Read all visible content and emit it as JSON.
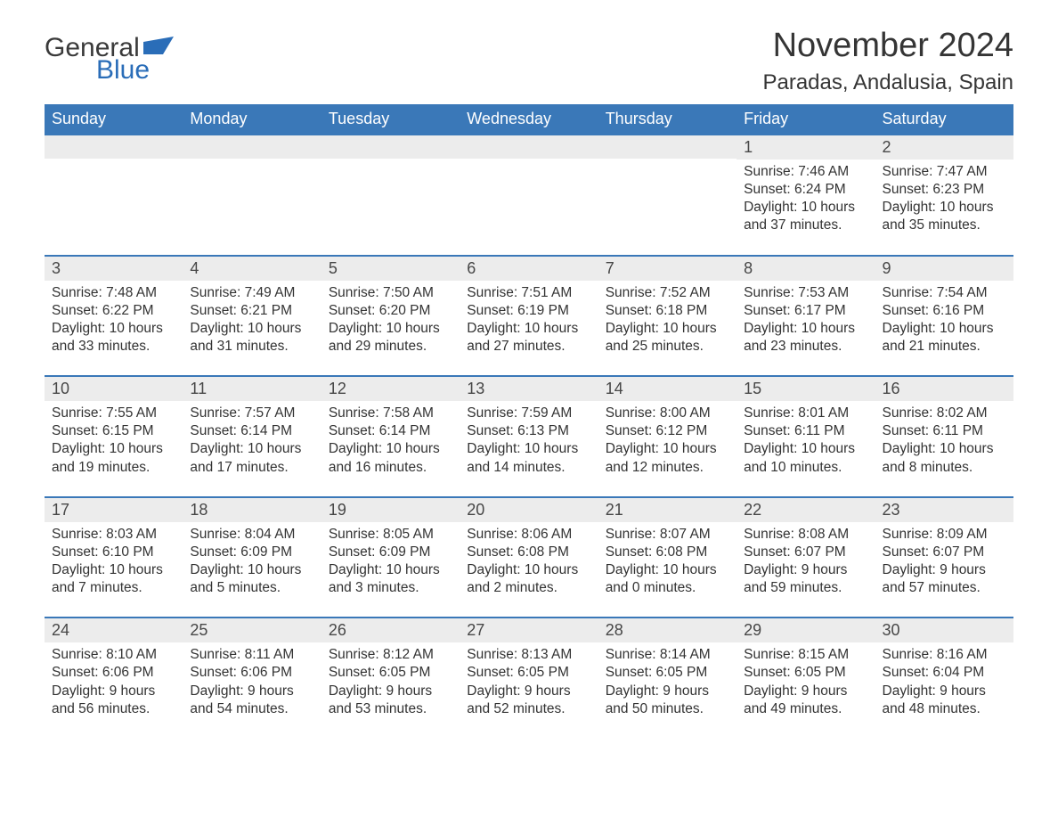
{
  "logo": {
    "text1": "General",
    "text2": "Blue",
    "flag_color": "#2a6db8"
  },
  "title": "November 2024",
  "location": "Paradas, Andalusia, Spain",
  "header_bg": "#3a78b8",
  "day_header_bg": "#ececec",
  "text_color": "#333333",
  "week_days": [
    "Sunday",
    "Monday",
    "Tuesday",
    "Wednesday",
    "Thursday",
    "Friday",
    "Saturday"
  ],
  "weeks": [
    [
      {},
      {},
      {},
      {},
      {},
      {
        "num": "1",
        "sunrise": "Sunrise: 7:46 AM",
        "sunset": "Sunset: 6:24 PM",
        "daylight": "Daylight: 10 hours and 37 minutes."
      },
      {
        "num": "2",
        "sunrise": "Sunrise: 7:47 AM",
        "sunset": "Sunset: 6:23 PM",
        "daylight": "Daylight: 10 hours and 35 minutes."
      }
    ],
    [
      {
        "num": "3",
        "sunrise": "Sunrise: 7:48 AM",
        "sunset": "Sunset: 6:22 PM",
        "daylight": "Daylight: 10 hours and 33 minutes."
      },
      {
        "num": "4",
        "sunrise": "Sunrise: 7:49 AM",
        "sunset": "Sunset: 6:21 PM",
        "daylight": "Daylight: 10 hours and 31 minutes."
      },
      {
        "num": "5",
        "sunrise": "Sunrise: 7:50 AM",
        "sunset": "Sunset: 6:20 PM",
        "daylight": "Daylight: 10 hours and 29 minutes."
      },
      {
        "num": "6",
        "sunrise": "Sunrise: 7:51 AM",
        "sunset": "Sunset: 6:19 PM",
        "daylight": "Daylight: 10 hours and 27 minutes."
      },
      {
        "num": "7",
        "sunrise": "Sunrise: 7:52 AM",
        "sunset": "Sunset: 6:18 PM",
        "daylight": "Daylight: 10 hours and 25 minutes."
      },
      {
        "num": "8",
        "sunrise": "Sunrise: 7:53 AM",
        "sunset": "Sunset: 6:17 PM",
        "daylight": "Daylight: 10 hours and 23 minutes."
      },
      {
        "num": "9",
        "sunrise": "Sunrise: 7:54 AM",
        "sunset": "Sunset: 6:16 PM",
        "daylight": "Daylight: 10 hours and 21 minutes."
      }
    ],
    [
      {
        "num": "10",
        "sunrise": "Sunrise: 7:55 AM",
        "sunset": "Sunset: 6:15 PM",
        "daylight": "Daylight: 10 hours and 19 minutes."
      },
      {
        "num": "11",
        "sunrise": "Sunrise: 7:57 AM",
        "sunset": "Sunset: 6:14 PM",
        "daylight": "Daylight: 10 hours and 17 minutes."
      },
      {
        "num": "12",
        "sunrise": "Sunrise: 7:58 AM",
        "sunset": "Sunset: 6:14 PM",
        "daylight": "Daylight: 10 hours and 16 minutes."
      },
      {
        "num": "13",
        "sunrise": "Sunrise: 7:59 AM",
        "sunset": "Sunset: 6:13 PM",
        "daylight": "Daylight: 10 hours and 14 minutes."
      },
      {
        "num": "14",
        "sunrise": "Sunrise: 8:00 AM",
        "sunset": "Sunset: 6:12 PM",
        "daylight": "Daylight: 10 hours and 12 minutes."
      },
      {
        "num": "15",
        "sunrise": "Sunrise: 8:01 AM",
        "sunset": "Sunset: 6:11 PM",
        "daylight": "Daylight: 10 hours and 10 minutes."
      },
      {
        "num": "16",
        "sunrise": "Sunrise: 8:02 AM",
        "sunset": "Sunset: 6:11 PM",
        "daylight": "Daylight: 10 hours and 8 minutes."
      }
    ],
    [
      {
        "num": "17",
        "sunrise": "Sunrise: 8:03 AM",
        "sunset": "Sunset: 6:10 PM",
        "daylight": "Daylight: 10 hours and 7 minutes."
      },
      {
        "num": "18",
        "sunrise": "Sunrise: 8:04 AM",
        "sunset": "Sunset: 6:09 PM",
        "daylight": "Daylight: 10 hours and 5 minutes."
      },
      {
        "num": "19",
        "sunrise": "Sunrise: 8:05 AM",
        "sunset": "Sunset: 6:09 PM",
        "daylight": "Daylight: 10 hours and 3 minutes."
      },
      {
        "num": "20",
        "sunrise": "Sunrise: 8:06 AM",
        "sunset": "Sunset: 6:08 PM",
        "daylight": "Daylight: 10 hours and 2 minutes."
      },
      {
        "num": "21",
        "sunrise": "Sunrise: 8:07 AM",
        "sunset": "Sunset: 6:08 PM",
        "daylight": "Daylight: 10 hours and 0 minutes."
      },
      {
        "num": "22",
        "sunrise": "Sunrise: 8:08 AM",
        "sunset": "Sunset: 6:07 PM",
        "daylight": "Daylight: 9 hours and 59 minutes."
      },
      {
        "num": "23",
        "sunrise": "Sunrise: 8:09 AM",
        "sunset": "Sunset: 6:07 PM",
        "daylight": "Daylight: 9 hours and 57 minutes."
      }
    ],
    [
      {
        "num": "24",
        "sunrise": "Sunrise: 8:10 AM",
        "sunset": "Sunset: 6:06 PM",
        "daylight": "Daylight: 9 hours and 56 minutes."
      },
      {
        "num": "25",
        "sunrise": "Sunrise: 8:11 AM",
        "sunset": "Sunset: 6:06 PM",
        "daylight": "Daylight: 9 hours and 54 minutes."
      },
      {
        "num": "26",
        "sunrise": "Sunrise: 8:12 AM",
        "sunset": "Sunset: 6:05 PM",
        "daylight": "Daylight: 9 hours and 53 minutes."
      },
      {
        "num": "27",
        "sunrise": "Sunrise: 8:13 AM",
        "sunset": "Sunset: 6:05 PM",
        "daylight": "Daylight: 9 hours and 52 minutes."
      },
      {
        "num": "28",
        "sunrise": "Sunrise: 8:14 AM",
        "sunset": "Sunset: 6:05 PM",
        "daylight": "Daylight: 9 hours and 50 minutes."
      },
      {
        "num": "29",
        "sunrise": "Sunrise: 8:15 AM",
        "sunset": "Sunset: 6:05 PM",
        "daylight": "Daylight: 9 hours and 49 minutes."
      },
      {
        "num": "30",
        "sunrise": "Sunrise: 8:16 AM",
        "sunset": "Sunset: 6:04 PM",
        "daylight": "Daylight: 9 hours and 48 minutes."
      }
    ]
  ]
}
